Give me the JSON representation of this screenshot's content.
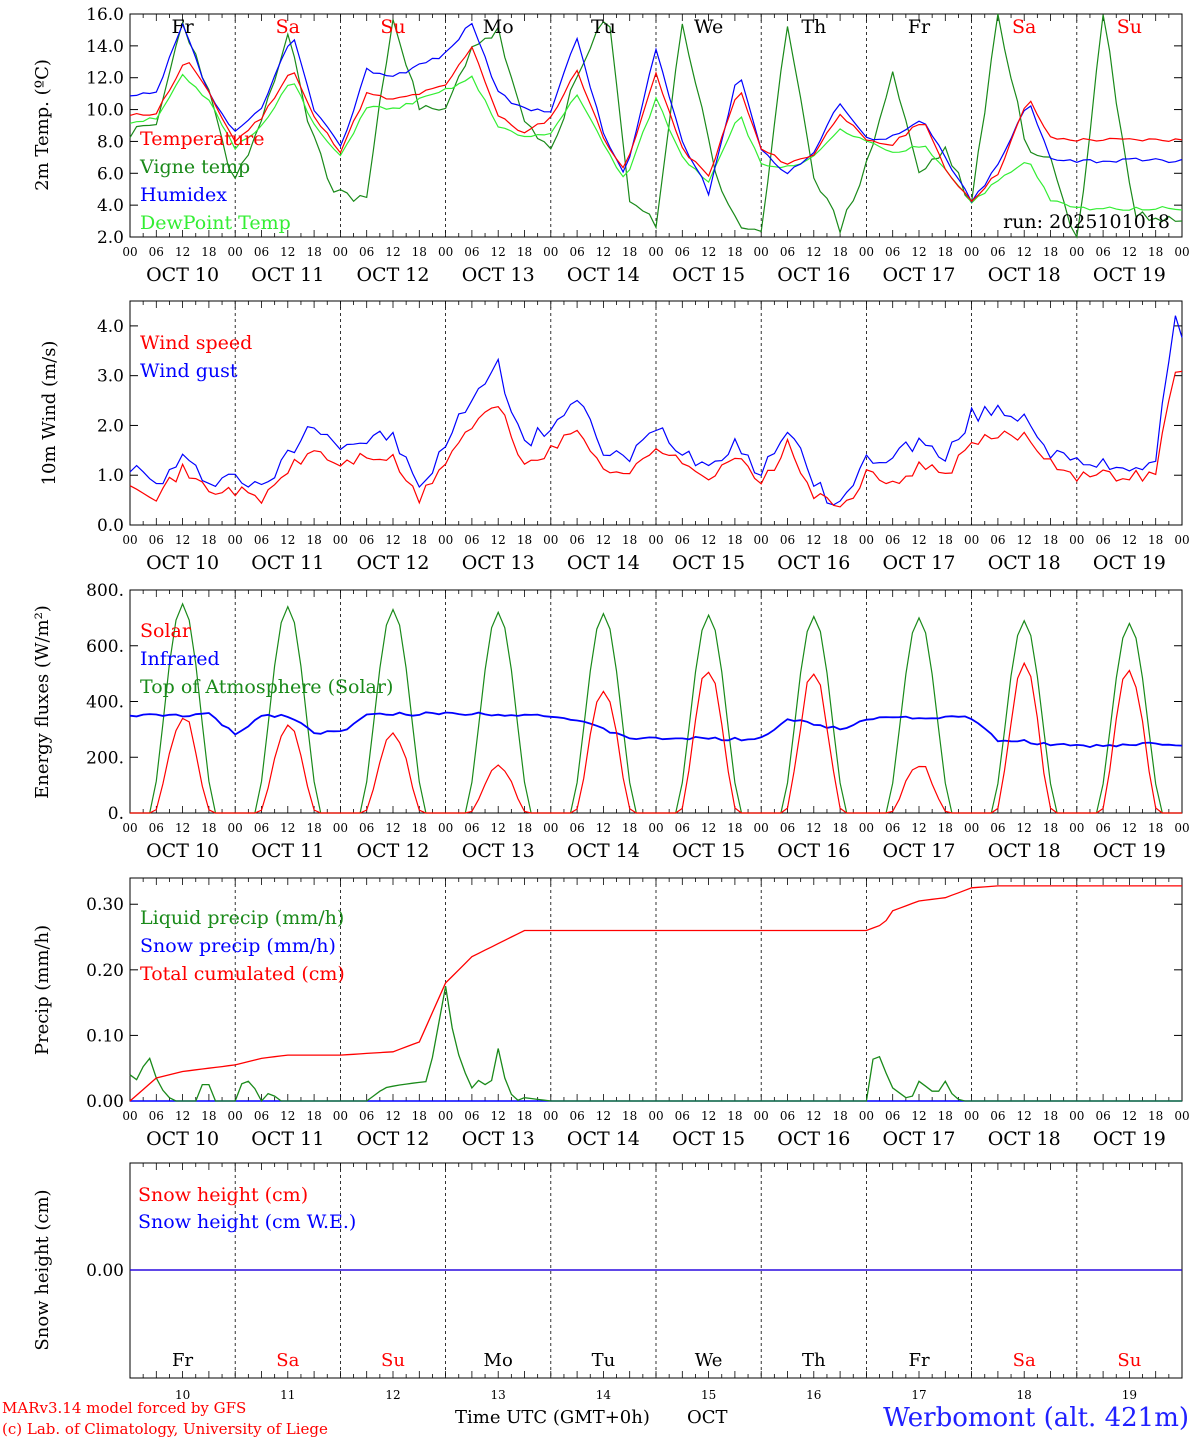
{
  "footer": {
    "credit_line1": "MARv3.14 model forced by GFS",
    "credit_line2": "(c) Lab. of Climatology, University of Liege",
    "time_label": "Time UTC (GMT+0h)",
    "month_label": "OCT",
    "station": "Werbomont (alt. 421m)"
  },
  "colors": {
    "red": "#ff0000",
    "blue": "#0000ff",
    "green": "#1a8a1a",
    "lightgreen": "#33ee33",
    "black": "#000000"
  },
  "chart_data": [
    {
      "type": "line",
      "panel": "temperature",
      "ylabel": "2m Temp. (ºC)",
      "ylim": [
        2.0,
        16.0
      ],
      "yticks": [
        "2.0",
        "4.0",
        "6.0",
        "8.0",
        "10.0",
        "12.0",
        "14.0",
        "16.0"
      ],
      "run_label": "run: 2025101018",
      "weekdays": [
        {
          "label": "Fr",
          "color": "black"
        },
        {
          "label": "Sa",
          "color": "red"
        },
        {
          "label": "Su",
          "color": "red"
        },
        {
          "label": "Mo",
          "color": "black"
        },
        {
          "label": "Tu",
          "color": "black"
        },
        {
          "label": "We",
          "color": "black"
        },
        {
          "label": "Th",
          "color": "black"
        },
        {
          "label": "Fr",
          "color": "black"
        },
        {
          "label": "Sa",
          "color": "red"
        },
        {
          "label": "Su",
          "color": "red"
        }
      ],
      "x_hours_step": 6,
      "series": [
        {
          "name": "Temperature",
          "color": "red",
          "key_hours": [
            0,
            6,
            13,
            18,
            24,
            30,
            37,
            42,
            48,
            54,
            60,
            66,
            72,
            78,
            84,
            90,
            96,
            102,
            108,
            113,
            120,
            126,
            132,
            139,
            144,
            150,
            156,
            162,
            168,
            174,
            181,
            186,
            192,
            198,
            205,
            210,
            216,
            222,
            229,
            234,
            240
          ],
          "key_values": [
            9.6,
            9.8,
            13.2,
            11,
            8,
            9.5,
            12.6,
            9.5,
            7.4,
            11,
            10.6,
            11,
            11.5,
            14,
            9.6,
            8.5,
            9.5,
            12.5,
            8.2,
            6.2,
            12.3,
            7.5,
            5.8,
            11.4,
            7.5,
            6.6,
            7.2,
            9.8,
            8,
            7.8,
            9.4,
            6.2,
            4.3,
            6,
            10.7,
            8.2,
            8.1,
            8.1,
            8.1,
            8.1,
            8.1
          ]
        },
        {
          "name": "Vigne temp",
          "color": "green",
          "key_hours": [
            0,
            6,
            12,
            17,
            22,
            24,
            30,
            36,
            41,
            46,
            51,
            54,
            60,
            66,
            72,
            78,
            84,
            90,
            96,
            102,
            109,
            114,
            120,
            126,
            134,
            139,
            144,
            150,
            156,
            162,
            168,
            174,
            180,
            186,
            192,
            198,
            205,
            210,
            216,
            222,
            229,
            234,
            240
          ],
          "key_values": [
            8.5,
            9,
            15.5,
            12,
            7,
            5.5,
            9,
            14.8,
            9,
            5,
            4.5,
            4.5,
            16,
            10,
            9.9,
            14,
            14.9,
            9,
            7.5,
            12,
            16.1,
            4.5,
            2.8,
            15.5,
            5.5,
            2.8,
            2,
            15.5,
            6,
            2.5,
            6.5,
            12.3,
            6,
            7.5,
            4,
            16.1,
            7,
            7.2,
            1.2,
            16.1,
            3.5,
            3.2,
            3.1
          ]
        },
        {
          "name": "Humidex",
          "color": "blue",
          "key_hours": [
            0,
            6,
            12,
            18,
            24,
            30,
            37,
            42,
            48,
            54,
            60,
            66,
            72,
            78,
            84,
            90,
            96,
            102,
            108,
            113,
            120,
            126,
            132,
            139,
            144,
            150,
            156,
            162,
            168,
            174,
            181,
            186,
            192,
            198,
            205,
            210,
            216,
            222,
            229,
            234,
            240
          ],
          "key_values": [
            10.8,
            11,
            15.3,
            11,
            8.5,
            10,
            14.8,
            10,
            7.6,
            12.5,
            12.1,
            12.8,
            13.5,
            15.5,
            11,
            10,
            10,
            14.5,
            8.5,
            5.8,
            13.8,
            8,
            4.8,
            12.5,
            7.5,
            6,
            7.3,
            10.5,
            8.2,
            8.3,
            9.3,
            7,
            4.2,
            6.5,
            10.5,
            7,
            6.8,
            6.8,
            6.8,
            6.8,
            6.8
          ]
        },
        {
          "name": "DewPoint Temp",
          "color": "lightgreen",
          "key_hours": [
            0,
            6,
            12,
            18,
            24,
            30,
            37,
            42,
            48,
            54,
            60,
            66,
            72,
            78,
            84,
            90,
            96,
            102,
            108,
            113,
            120,
            126,
            132,
            139,
            144,
            150,
            156,
            162,
            168,
            174,
            181,
            186,
            192,
            198,
            205,
            210,
            216,
            222,
            229,
            234,
            240
          ],
          "key_values": [
            9.2,
            9.5,
            12.1,
            10.5,
            7.6,
            9,
            11.9,
            9,
            7,
            10.2,
            10,
            10.6,
            11.2,
            12,
            9,
            8.2,
            8.5,
            11,
            7.8,
            5.5,
            10.7,
            7,
            5.5,
            9.8,
            6.5,
            6.4,
            7,
            8.7,
            8,
            7.2,
            7.8,
            6.3,
            4.2,
            5.5,
            6.8,
            4.3,
            3.8,
            3.8,
            3.8,
            3.8,
            3.8
          ]
        }
      ]
    },
    {
      "type": "line",
      "panel": "wind",
      "ylabel": "10m Wind (m/s)",
      "ylim": [
        0.0,
        4.5
      ],
      "yticks": [
        "0.0",
        "1.0",
        "2.0",
        "3.0",
        "4.0"
      ],
      "series": [
        {
          "name": "Wind speed",
          "color": "red",
          "key_hours": [
            0,
            6,
            12,
            18,
            24,
            30,
            36,
            42,
            48,
            54,
            60,
            66,
            72,
            78,
            84,
            90,
            96,
            102,
            108,
            114,
            120,
            126,
            132,
            138,
            144,
            150,
            156,
            162,
            168,
            174,
            180,
            186,
            192,
            198,
            204,
            210,
            216,
            222,
            228,
            234,
            238,
            240
          ],
          "key_values": [
            0.9,
            0.6,
            1.1,
            0.7,
            0.7,
            0.5,
            1.1,
            1.5,
            1.2,
            1.4,
            1.3,
            0.5,
            1.3,
            2,
            2.4,
            1.2,
            1.5,
            1.9,
            1.2,
            1.0,
            1.6,
            1.2,
            1.0,
            1.4,
            0.8,
            1.6,
            0.6,
            0.3,
            1.0,
            0.8,
            1.2,
            1.0,
            1.6,
            1.8,
            1.8,
            1.3,
            1.0,
            1.0,
            1.0,
            1.0,
            3.1,
            3.0
          ]
        },
        {
          "name": "Wind gust",
          "color": "blue",
          "key_hours": [
            0,
            6,
            12,
            18,
            24,
            30,
            36,
            42,
            48,
            54,
            60,
            66,
            72,
            78,
            84,
            90,
            96,
            102,
            108,
            114,
            120,
            126,
            132,
            138,
            144,
            150,
            156,
            162,
            168,
            174,
            180,
            186,
            192,
            198,
            204,
            210,
            216,
            222,
            228,
            234,
            238,
            240
          ],
          "key_values": [
            1.2,
            0.8,
            1.3,
            0.9,
            1.0,
            0.7,
            1.4,
            2.1,
            1.6,
            1.7,
            1.8,
            0.7,
            1.6,
            2.6,
            3.2,
            1.6,
            2.0,
            2.5,
            1.5,
            1.3,
            2.0,
            1.5,
            1.2,
            1.7,
            1.0,
            2.0,
            0.8,
            0.4,
            1.3,
            1.4,
            1.7,
            1.3,
            2.2,
            2.3,
            2.2,
            1.5,
            1.2,
            1.2,
            1.2,
            1.2,
            4.1,
            3.9
          ]
        }
      ]
    },
    {
      "type": "line",
      "panel": "energy",
      "ylabel": "Energy fluxes (W/m²)",
      "ylim": [
        0,
        800
      ],
      "yticks": [
        "0.",
        "200.",
        "400.",
        "600.",
        "800."
      ],
      "toa_peaks": [
        750,
        740,
        730,
        720,
        715,
        710,
        705,
        700,
        690,
        680
      ],
      "solar_peaks": [
        350,
        310,
        295,
        170,
        445,
        510,
        500,
        175,
        515,
        510
      ],
      "series": [
        {
          "name": "Solar",
          "color": "red"
        },
        {
          "name": "Infrared",
          "color": "blue",
          "key_hours": [
            0,
            12,
            18,
            24,
            30,
            36,
            42,
            48,
            54,
            60,
            66,
            72,
            84,
            96,
            102,
            108,
            114,
            120,
            126,
            132,
            138,
            144,
            150,
            156,
            162,
            168,
            174,
            180,
            186,
            192,
            198,
            204,
            210,
            216,
            222,
            228,
            234,
            240
          ],
          "key_values": [
            350,
            350,
            355,
            280,
            350,
            350,
            290,
            290,
            350,
            355,
            355,
            358,
            355,
            350,
            330,
            300,
            270,
            265,
            270,
            265,
            265,
            270,
            335,
            320,
            300,
            340,
            345,
            340,
            345,
            340,
            258,
            258,
            245,
            240,
            240,
            245,
            250,
            245
          ]
        },
        {
          "name": "Top of Atmosphere (Solar)",
          "color": "green"
        }
      ]
    },
    {
      "type": "line",
      "panel": "precip",
      "ylabel": "Precip (mm/h)",
      "ylim": [
        0.0,
        0.34
      ],
      "yticks": [
        "0.00",
        "0.10",
        "0.20",
        "0.30"
      ],
      "series": [
        {
          "name": "Liquid precip (mm/h)",
          "color": "green",
          "key_hours": [
            0,
            2,
            4,
            6,
            8,
            10,
            16,
            17,
            19,
            24,
            26,
            28,
            30,
            32,
            34,
            36,
            38,
            40,
            44,
            48,
            54,
            58,
            62,
            68,
            72,
            74,
            76,
            78,
            80,
            82,
            84,
            86,
            88,
            90,
            96,
            168,
            170,
            172,
            174,
            176,
            178,
            180,
            182,
            184,
            186,
            188,
            190,
            192,
            240
          ],
          "key_values": [
            0.04,
            0.03,
            0.075,
            0.035,
            0.01,
            0,
            0,
            0.05,
            0,
            0,
            0.035,
            0.025,
            0,
            0.015,
            0,
            0,
            0,
            0,
            0,
            0,
            0,
            0.02,
            0.025,
            0.03,
            0.175,
            0.09,
            0.05,
            0.02,
            0.035,
            0.015,
            0.08,
            0.02,
            0,
            0.005,
            0,
            0,
            0.085,
            0.05,
            0.02,
            0.01,
            0,
            0.03,
            0.02,
            0.01,
            0.03,
            0.005,
            0,
            0,
            0
          ]
        },
        {
          "name": "Snow precip (mm/h)",
          "color": "blue",
          "key_hours": [
            0,
            240
          ],
          "key_values": [
            0,
            0
          ]
        },
        {
          "name": "Total cumulated (cm)",
          "color": "red",
          "key_hours": [
            0,
            6,
            12,
            18,
            24,
            30,
            36,
            48,
            60,
            66,
            72,
            78,
            84,
            90,
            96,
            168,
            172,
            174,
            180,
            186,
            192,
            198,
            240
          ],
          "key_values": [
            0,
            0.035,
            0.045,
            0.05,
            0.055,
            0.065,
            0.07,
            0.07,
            0.075,
            0.09,
            0.18,
            0.22,
            0.24,
            0.26,
            0.26,
            0.26,
            0.27,
            0.29,
            0.305,
            0.31,
            0.325,
            0.328,
            0.328
          ]
        }
      ]
    },
    {
      "type": "line",
      "panel": "snow",
      "ylabel": "Snow height (cm)",
      "yticks": [
        "0.00"
      ],
      "day_numbers": [
        "10",
        "11",
        "12",
        "13",
        "14",
        "15",
        "16",
        "17",
        "18",
        "19"
      ],
      "series": [
        {
          "name": "Snow height (cm)",
          "color": "red",
          "key_hours": [
            0,
            240
          ],
          "key_values": [
            0,
            0
          ]
        },
        {
          "name": "Snow height (cm W.E.)",
          "color": "blue",
          "key_hours": [
            0,
            240
          ],
          "key_values": [
            0,
            0
          ]
        }
      ]
    }
  ],
  "x_axis": {
    "hour_ticks": [
      "00",
      "06",
      "12",
      "18"
    ],
    "day_labels": [
      "OCT 10",
      "OCT 11",
      "OCT 12",
      "OCT 13",
      "OCT 14",
      "OCT 15",
      "OCT 16",
      "OCT 17",
      "OCT 18",
      "OCT 19"
    ],
    "final_tick": "00"
  }
}
